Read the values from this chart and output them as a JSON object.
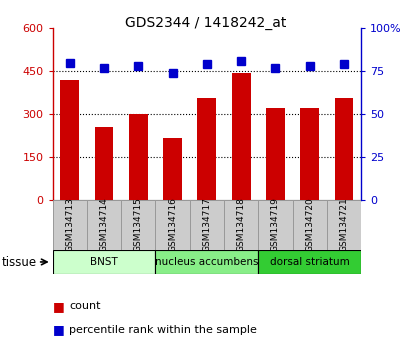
{
  "title": "GDS2344 / 1418242_at",
  "samples": [
    "GSM134713",
    "GSM134714",
    "GSM134715",
    "GSM134716",
    "GSM134717",
    "GSM134718",
    "GSM134719",
    "GSM134720",
    "GSM134721"
  ],
  "counts": [
    420,
    255,
    300,
    215,
    355,
    445,
    320,
    320,
    355
  ],
  "percentiles": [
    80,
    77,
    78,
    74,
    79,
    81,
    77,
    78,
    79
  ],
  "bar_color": "#cc0000",
  "dot_color": "#0000cc",
  "ylim_left": [
    0,
    600
  ],
  "ylim_right": [
    0,
    100
  ],
  "yticks_left": [
    0,
    150,
    300,
    450,
    600
  ],
  "ytick_labels_left": [
    "0",
    "150",
    "300",
    "450",
    "600"
  ],
  "yticks_right": [
    0,
    25,
    50,
    75,
    100
  ],
  "ytick_labels_right": [
    "0",
    "25",
    "50",
    "75",
    "100%"
  ],
  "groups": [
    {
      "label": "BNST",
      "start": 0,
      "end": 3,
      "color": "#ccffcc"
    },
    {
      "label": "nucleus accumbens",
      "start": 3,
      "end": 6,
      "color": "#88ee88"
    },
    {
      "label": "dorsal striatum",
      "start": 6,
      "end": 9,
      "color": "#33cc33"
    }
  ],
  "tissue_label": "tissue",
  "legend_count_label": "count",
  "legend_pct_label": "percentile rank within the sample",
  "bar_width": 0.55,
  "sample_box_color": "#cccccc",
  "sample_box_edge": "#999999"
}
